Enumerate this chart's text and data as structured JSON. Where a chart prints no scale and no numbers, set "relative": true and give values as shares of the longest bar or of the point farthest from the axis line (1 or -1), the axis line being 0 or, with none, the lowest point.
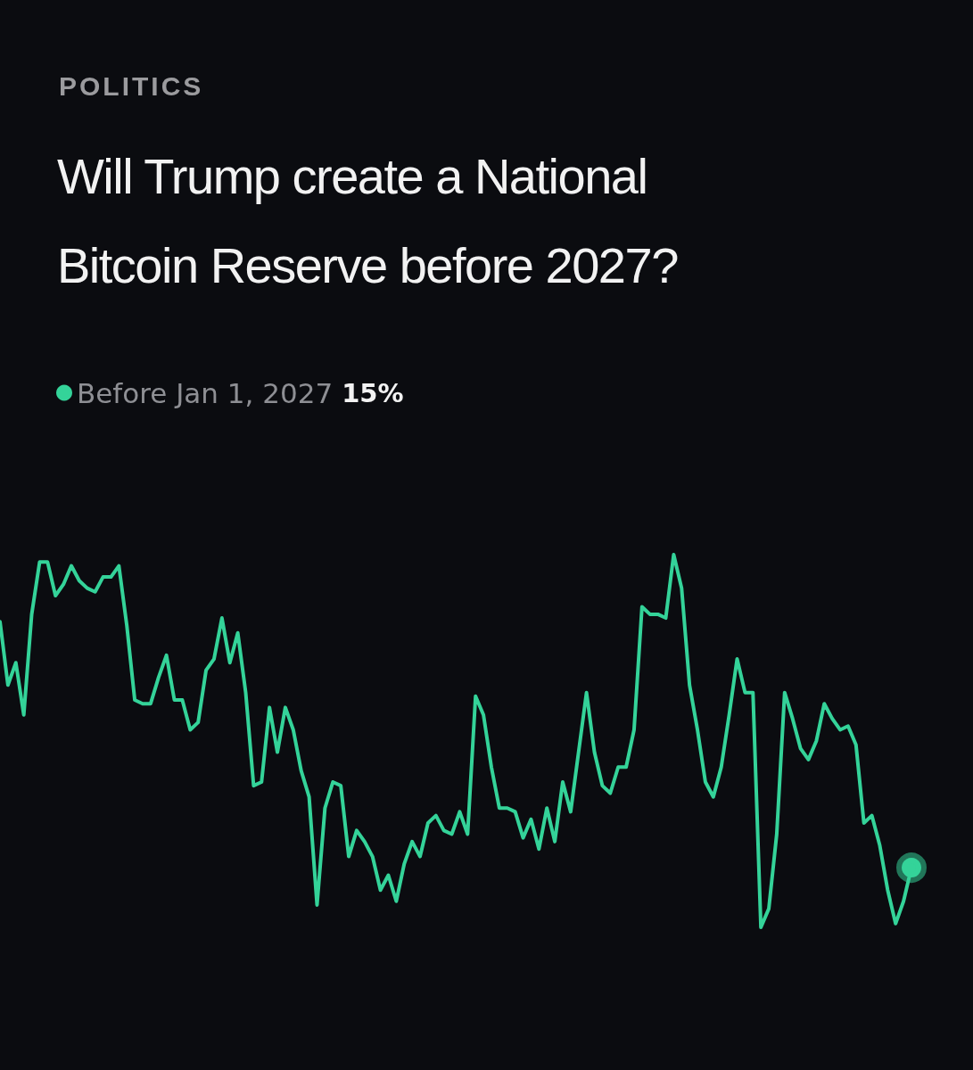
{
  "chart_data": {
    "type": "line",
    "subtitle": "POLITICS",
    "title": "Will Trump create a National Bitcoin Reserve before 2027?",
    "relative": true,
    "legend": "top left",
    "line_style": "solid",
    "annotations": [
      "15%"
    ],
    "categories": [
      null,
      null,
      null,
      null,
      null,
      null,
      null,
      null,
      null,
      null,
      null,
      null,
      null,
      null,
      null,
      null,
      null,
      null,
      null,
      null,
      null,
      null,
      null,
      null,
      null,
      null,
      null,
      null,
      null,
      null,
      null,
      null,
      null,
      null,
      null,
      null,
      null,
      null,
      null,
      null,
      null,
      null,
      null,
      null,
      null,
      null,
      null,
      null,
      null,
      null,
      null,
      null,
      null,
      null,
      null,
      null,
      null,
      null,
      null,
      null,
      null,
      null,
      null,
      null,
      null,
      null,
      null,
      null,
      null,
      null,
      null,
      null,
      null,
      null,
      null,
      null,
      null,
      null,
      null,
      null,
      null,
      null,
      null,
      null,
      null,
      null,
      null,
      null,
      null,
      null,
      null,
      null,
      null,
      null,
      null,
      null,
      null,
      null,
      null,
      null,
      null,
      null,
      null,
      null,
      null,
      null,
      null,
      null,
      null,
      null,
      null,
      null,
      null,
      null,
      null,
      null
    ],
    "series": [
      {
        "name": "Before Jan 1, 2027",
        "color": "#34d399",
        "values": [
          0.82,
          0.65,
          0.71,
          0.57,
          0.84,
          0.98,
          0.98,
          0.89,
          0.92,
          0.97,
          0.93,
          0.91,
          0.9,
          0.94,
          0.94,
          0.97,
          0.81,
          0.61,
          0.6,
          0.6,
          0.67,
          0.73,
          0.61,
          0.61,
          0.53,
          0.55,
          0.69,
          0.72,
          0.83,
          0.71,
          0.79,
          0.63,
          0.38,
          0.39,
          0.59,
          0.47,
          0.59,
          0.53,
          0.42,
          0.35,
          0.06,
          0.32,
          0.39,
          0.38,
          0.19,
          0.26,
          0.23,
          0.19,
          0.1,
          0.14,
          0.07,
          0.17,
          0.23,
          0.19,
          0.28,
          0.3,
          0.26,
          0.25,
          0.31,
          0.25,
          0.62,
          0.57,
          0.43,
          0.32,
          0.32,
          0.31,
          0.24,
          0.29,
          0.21,
          0.32,
          0.23,
          0.39,
          0.31,
          0.47,
          0.63,
          0.47,
          0.38,
          0.36,
          0.43,
          0.43,
          0.53,
          0.86,
          0.84,
          0.84,
          0.83,
          1.0,
          0.91,
          0.65,
          0.53,
          0.39,
          0.35,
          0.43,
          0.57,
          0.72,
          0.63,
          0.63,
          0.0,
          0.05,
          0.25,
          0.63,
          0.56,
          0.48,
          0.45,
          0.5,
          0.6,
          0.56,
          0.53,
          0.54,
          0.49,
          0.28,
          0.3,
          0.22,
          0.1,
          0.01,
          0.07,
          0.16
        ]
      }
    ]
  }
}
